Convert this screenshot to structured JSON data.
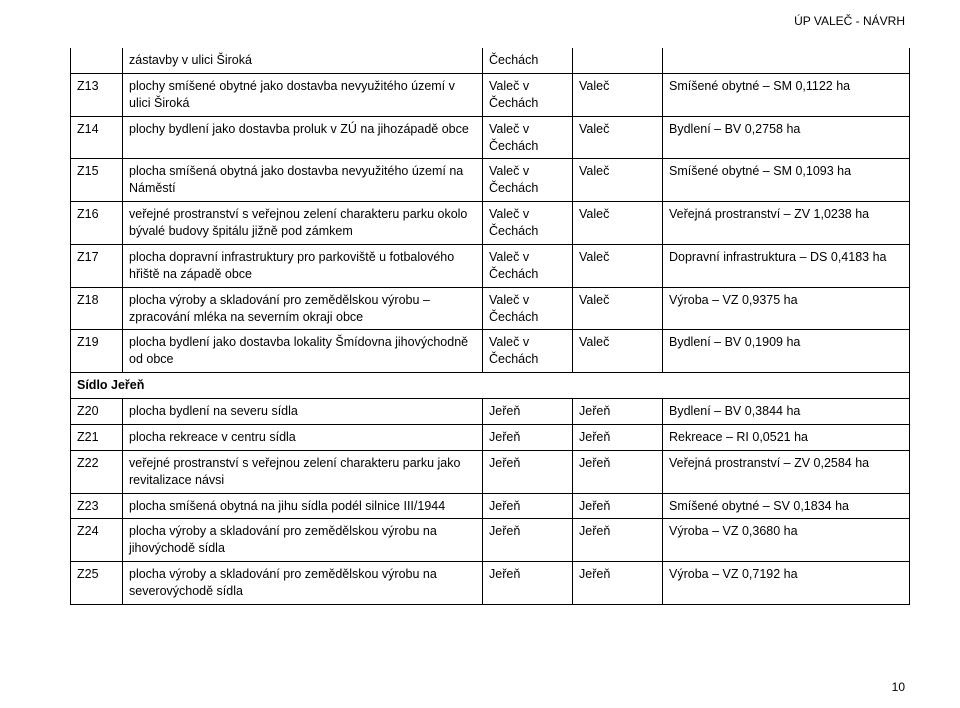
{
  "header": "ÚP VALEČ - NÁVRH",
  "pagenum": "10",
  "loc_vc": "Valeč v Čechách",
  "loc_v": "Valeč",
  "loc_j": "Jeřeň",
  "pre_row": {
    "col2": "zástavby v ulici Široká",
    "col3": "Čechách"
  },
  "rows": [
    {
      "code": "Z13",
      "desc": "plochy smíšené obytné jako dostavba nevyužitého území v ulici Široká",
      "c3": "vc",
      "c4": "v",
      "right": "Smíšené obytné – SM 0,1122 ha"
    },
    {
      "code": "Z14",
      "desc": "plochy bydlení jako dostavba proluk v ZÚ na jihozápadě obce",
      "c3": "vc",
      "c4": "v",
      "right": "Bydlení – BV 0,2758 ha"
    },
    {
      "code": "Z15",
      "desc": "plocha smíšená obytná jako dostavba nevyužitého území na Náměstí",
      "c3": "vc",
      "c4": "v",
      "right": "Smíšené obytné – SM 0,1093 ha"
    },
    {
      "code": "Z16",
      "desc": "veřejné prostranství s veřejnou zelení charakteru parku okolo bývalé budovy špitálu jižně pod zámkem",
      "c3": "vc",
      "c4": "v",
      "right": "Veřejná prostranství – ZV 1,0238 ha"
    },
    {
      "code": "Z17",
      "desc": "plocha dopravní infrastruktury pro parkoviště u fotbalového hřiště na západě obce",
      "c3": "vc",
      "c4": "v",
      "right": "Dopravní infrastruktura – DS 0,4183 ha"
    },
    {
      "code": "Z18",
      "desc": "plocha výroby a skladování pro zemědělskou výrobu – zpracování mléka na severním okraji obce",
      "c3": "vc",
      "c4": "v",
      "right": "Výroba – VZ 0,9375 ha"
    },
    {
      "code": "Z19",
      "desc": "plocha bydlení jako dostavba lokality Šmídovna jihovýchodně od obce",
      "c3": "vc",
      "c4": "v",
      "right": "Bydlení – BV 0,1909 ha"
    }
  ],
  "section2_label": "Sídlo Jeřeň",
  "rows2": [
    {
      "code": "Z20",
      "desc": "plocha bydlení na severu sídla",
      "c3": "j",
      "c4": "j",
      "right": "Bydlení – BV 0,3844 ha"
    },
    {
      "code": "Z21",
      "desc": "plocha rekreace v centru sídla",
      "c3": "j",
      "c4": "j",
      "right": "Rekreace – RI 0,0521 ha"
    },
    {
      "code": "Z22",
      "desc": "veřejné prostranství s veřejnou zelení charakteru parku jako revitalizace návsi",
      "c3": "j",
      "c4": "j",
      "right": "Veřejná prostranství – ZV 0,2584 ha"
    },
    {
      "code": "Z23",
      "desc": "plocha smíšená obytná na jihu sídla podél silnice III/1944",
      "c3": "j",
      "c4": "j",
      "right": "Smíšené obytné – SV 0,1834 ha"
    },
    {
      "code": "Z24",
      "desc": "plocha výroby a skladování pro zemědělskou výrobu na jihovýchodě sídla",
      "c3": "j",
      "c4": "j",
      "right": "Výroba – VZ 0,3680 ha"
    },
    {
      "code": "Z25",
      "desc": "plocha výroby a skladování pro zemědělskou výrobu na severovýchodě sídla",
      "c3": "j",
      "c4": "j",
      "right": "Výroba – VZ 0,7192 ha"
    }
  ]
}
